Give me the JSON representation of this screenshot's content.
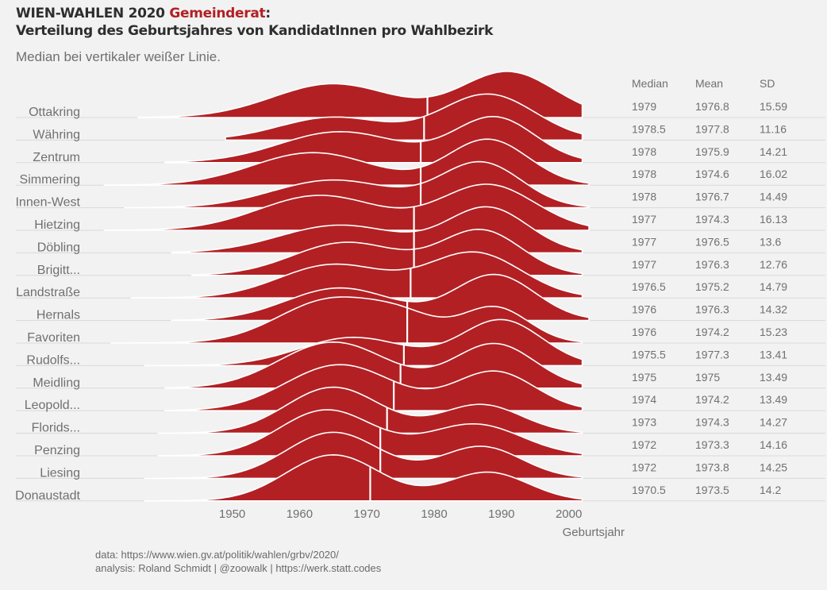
{
  "title": {
    "prefix": "WIEN-WAHLEN 2020 ",
    "accent": "Gemeinderat",
    "suffix": ":",
    "line2": "Verteilung des Geburtsjahres von KandidatInnen pro Wahlbezirk"
  },
  "subtitle": "Median bei vertikaler weißer Linie.",
  "caption": {
    "line1": "data: https://www.wien.gv.at/politik/wahlen/grbv/2020/",
    "line2": "analysis: Roland Schmidt | @zoowalk | https://werk.statt.codes"
  },
  "colors": {
    "fill": "#b22024",
    "median_line": "#ffffff",
    "background": "#f2f2f2",
    "text": "#707070",
    "baseline": "#d9d9d9"
  },
  "chart_data": {
    "type": "ridgeline",
    "xlabel": "Geburtsjahr",
    "ylabel": "",
    "x_ticks": [
      1950,
      1960,
      1970,
      1980,
      1990,
      2000
    ],
    "xlim": [
      1928,
      2009
    ],
    "grid": false,
    "table_headers": [
      "Median",
      "Mean",
      "SD"
    ],
    "series": [
      {
        "name": "Ottakring",
        "median": "1979",
        "mean": "1976.8",
        "sd": "15.59",
        "min": 1936,
        "max": 2002
      },
      {
        "name": "Währing",
        "median": "1978.5",
        "mean": "1977.8",
        "sd": "11.16",
        "min": 1949,
        "max": 2002
      },
      {
        "name": "Zentrum",
        "median": "1978",
        "mean": "1975.9",
        "sd": "14.21",
        "min": 1940,
        "max": 2002
      },
      {
        "name": "Simmering",
        "median": "1978",
        "mean": "1974.6",
        "sd": "16.02",
        "min": 1931,
        "max": 2003
      },
      {
        "name": "Innen-West",
        "median": "1978",
        "mean": "1976.7",
        "sd": "14.49",
        "min": 1934,
        "max": 2003
      },
      {
        "name": "Hietzing",
        "median": "1977",
        "mean": "1974.3",
        "sd": "16.13",
        "min": 1931,
        "max": 2003
      },
      {
        "name": "Döbling",
        "median": "1977",
        "mean": "1976.5",
        "sd": "13.6",
        "min": 1941,
        "max": 2002
      },
      {
        "name": "Brigitt...",
        "median": "1977",
        "mean": "1976.3",
        "sd": "12.76",
        "min": 1944,
        "max": 2002
      },
      {
        "name": "Landstraße",
        "median": "1976.5",
        "mean": "1975.2",
        "sd": "14.79",
        "min": 1935,
        "max": 2002
      },
      {
        "name": "Hernals",
        "median": "1976",
        "mean": "1976.3",
        "sd": "14.32",
        "min": 1941,
        "max": 2003
      },
      {
        "name": "Favoriten",
        "median": "1976",
        "mean": "1974.2",
        "sd": "15.23",
        "min": 1932,
        "max": 2002
      },
      {
        "name": "Rudolfs...",
        "median": "1975.5",
        "mean": "1977.3",
        "sd": "13.41",
        "min": 1937,
        "max": 2002
      },
      {
        "name": "Meidling",
        "median": "1975",
        "mean": "1975",
        "sd": "13.49",
        "min": 1940,
        "max": 2002
      },
      {
        "name": "Leopold...",
        "median": "1974",
        "mean": "1974.2",
        "sd": "13.49",
        "min": 1940,
        "max": 2002
      },
      {
        "name": "Florids...",
        "median": "1973",
        "mean": "1974.3",
        "sd": "14.27",
        "min": 1939,
        "max": 2002
      },
      {
        "name": "Penzing",
        "median": "1972",
        "mean": "1973.3",
        "sd": "14.16",
        "min": 1939,
        "max": 2002
      },
      {
        "name": "Liesing",
        "median": "1972",
        "mean": "1973.8",
        "sd": "14.25",
        "min": 1937,
        "max": 2002
      },
      {
        "name": "Donaustadt",
        "median": "1970.5",
        "mean": "1973.5",
        "sd": "14.2",
        "min": 1937,
        "max": 2002
      }
    ]
  }
}
